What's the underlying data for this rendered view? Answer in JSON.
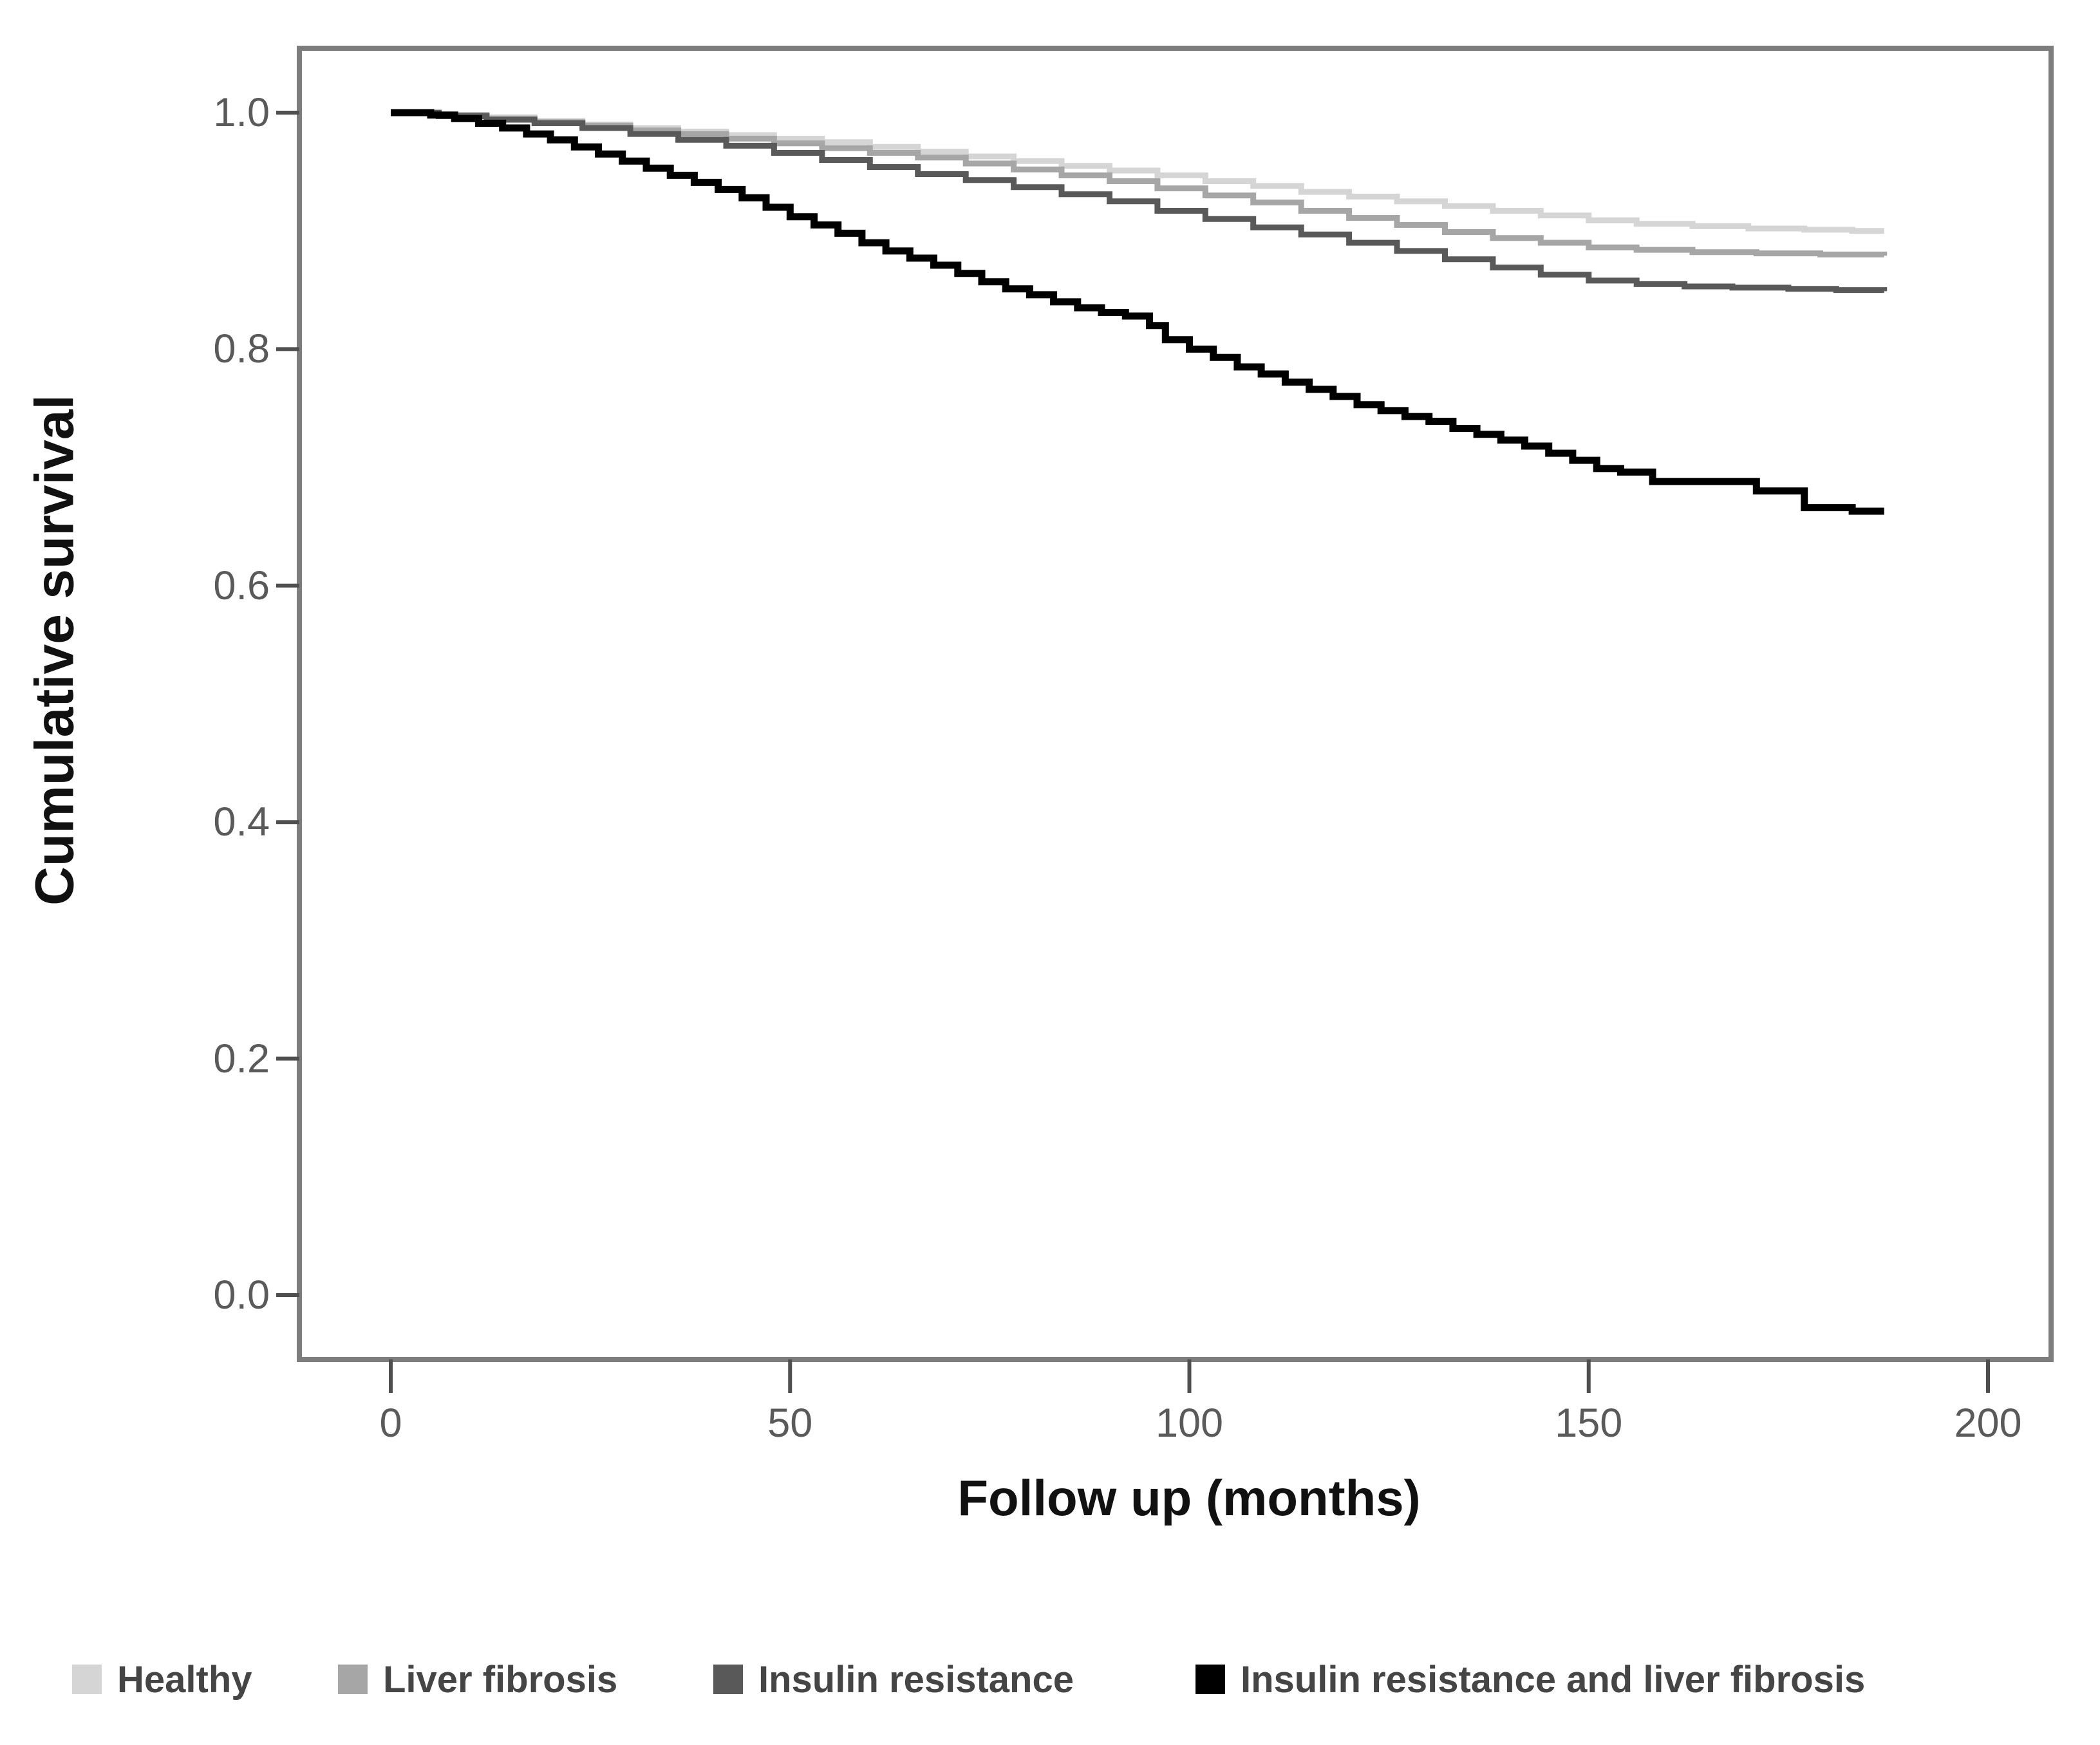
{
  "chart_data": {
    "type": "line",
    "subtype": "kaplan-meier-step-survival",
    "title": "",
    "xlabel": "Follow up (months)",
    "ylabel": "Cumulative survival",
    "xlim": [
      0,
      200
    ],
    "ylim": [
      0.0,
      1.0
    ],
    "x_ticks": [
      0,
      50,
      100,
      150,
      200
    ],
    "y_tick_labels": [
      "1.0",
      "0.8",
      "0.6",
      "0.4",
      "0.2",
      "0.0"
    ],
    "y_tick_values": [
      1.0,
      0.8,
      0.6,
      0.4,
      0.2,
      0.0
    ],
    "grid": false,
    "legend_position": "bottom",
    "frame_color": "#7d7d7d",
    "tick_color": "#4f4f4f",
    "series": [
      {
        "name": "Healthy",
        "color": "#d5d5d5",
        "line_width": 9,
        "points": [
          [
            0,
            1.0
          ],
          [
            6,
            0.998
          ],
          [
            12,
            0.996
          ],
          [
            18,
            0.993
          ],
          [
            24,
            0.99
          ],
          [
            30,
            0.987
          ],
          [
            36,
            0.984
          ],
          [
            42,
            0.981
          ],
          [
            48,
            0.978
          ],
          [
            54,
            0.975
          ],
          [
            60,
            0.971
          ],
          [
            66,
            0.967
          ],
          [
            72,
            0.963
          ],
          [
            78,
            0.959
          ],
          [
            84,
            0.955
          ],
          [
            90,
            0.951
          ],
          [
            96,
            0.947
          ],
          [
            102,
            0.942
          ],
          [
            108,
            0.938
          ],
          [
            114,
            0.933
          ],
          [
            120,
            0.929
          ],
          [
            126,
            0.925
          ],
          [
            132,
            0.921
          ],
          [
            138,
            0.917
          ],
          [
            144,
            0.913
          ],
          [
            150,
            0.909
          ],
          [
            156,
            0.906
          ],
          [
            163,
            0.904
          ],
          [
            170,
            0.902
          ],
          [
            177,
            0.901
          ],
          [
            183,
            0.9
          ],
          [
            187,
            0.9
          ]
        ]
      },
      {
        "name": "Liver fibrosis",
        "color": "#a6a6a6",
        "line_width": 9,
        "points": [
          [
            0,
            1.0
          ],
          [
            6,
            0.998
          ],
          [
            12,
            0.995
          ],
          [
            18,
            0.992
          ],
          [
            24,
            0.989
          ],
          [
            30,
            0.985
          ],
          [
            36,
            0.982
          ],
          [
            42,
            0.978
          ],
          [
            48,
            0.974
          ],
          [
            54,
            0.97
          ],
          [
            60,
            0.966
          ],
          [
            66,
            0.962
          ],
          [
            72,
            0.957
          ],
          [
            78,
            0.952
          ],
          [
            84,
            0.947
          ],
          [
            90,
            0.942
          ],
          [
            96,
            0.936
          ],
          [
            102,
            0.93
          ],
          [
            108,
            0.924
          ],
          [
            114,
            0.917
          ],
          [
            120,
            0.911
          ],
          [
            126,
            0.905
          ],
          [
            132,
            0.899
          ],
          [
            138,
            0.894
          ],
          [
            144,
            0.89
          ],
          [
            150,
            0.886
          ],
          [
            156,
            0.884
          ],
          [
            163,
            0.882
          ],
          [
            171,
            0.881
          ],
          [
            179,
            0.88
          ],
          [
            187,
            0.879
          ]
        ]
      },
      {
        "name": "Insulin resistance",
        "color": "#595959",
        "line_width": 9,
        "points": [
          [
            0,
            1.0
          ],
          [
            6,
            0.997
          ],
          [
            12,
            0.994
          ],
          [
            18,
            0.991
          ],
          [
            24,
            0.987
          ],
          [
            30,
            0.982
          ],
          [
            36,
            0.977
          ],
          [
            42,
            0.972
          ],
          [
            48,
            0.966
          ],
          [
            54,
            0.96
          ],
          [
            60,
            0.954
          ],
          [
            66,
            0.948
          ],
          [
            72,
            0.943
          ],
          [
            78,
            0.937
          ],
          [
            84,
            0.931
          ],
          [
            90,
            0.925
          ],
          [
            96,
            0.917
          ],
          [
            102,
            0.91
          ],
          [
            108,
            0.903
          ],
          [
            114,
            0.897
          ],
          [
            120,
            0.89
          ],
          [
            126,
            0.883
          ],
          [
            132,
            0.876
          ],
          [
            138,
            0.869
          ],
          [
            144,
            0.863
          ],
          [
            150,
            0.858
          ],
          [
            156,
            0.855
          ],
          [
            162,
            0.853
          ],
          [
            168,
            0.852
          ],
          [
            175,
            0.851
          ],
          [
            181,
            0.85
          ],
          [
            187,
            0.849
          ]
        ]
      },
      {
        "name": "Insulin resistance and liver fibrosis",
        "color": "#000000",
        "line_width": 11,
        "points": [
          [
            0,
            1.0
          ],
          [
            5,
            0.998
          ],
          [
            8,
            0.995
          ],
          [
            11,
            0.991
          ],
          [
            14,
            0.987
          ],
          [
            17,
            0.982
          ],
          [
            20,
            0.977
          ],
          [
            23,
            0.971
          ],
          [
            26,
            0.965
          ],
          [
            29,
            0.959
          ],
          [
            32,
            0.953
          ],
          [
            35,
            0.947
          ],
          [
            38,
            0.941
          ],
          [
            41,
            0.935
          ],
          [
            44,
            0.928
          ],
          [
            47,
            0.92
          ],
          [
            50,
            0.912
          ],
          [
            53,
            0.905
          ],
          [
            56,
            0.898
          ],
          [
            59,
            0.89
          ],
          [
            62,
            0.883
          ],
          [
            65,
            0.877
          ],
          [
            68,
            0.871
          ],
          [
            71,
            0.864
          ],
          [
            74,
            0.857
          ],
          [
            77,
            0.851
          ],
          [
            80,
            0.846
          ],
          [
            83,
            0.84
          ],
          [
            86,
            0.835
          ],
          [
            89,
            0.831
          ],
          [
            92,
            0.828
          ],
          [
            95,
            0.82
          ],
          [
            97,
            0.808
          ],
          [
            100,
            0.8
          ],
          [
            103,
            0.793
          ],
          [
            106,
            0.785
          ],
          [
            109,
            0.779
          ],
          [
            112,
            0.772
          ],
          [
            115,
            0.766
          ],
          [
            118,
            0.76
          ],
          [
            121,
            0.753
          ],
          [
            124,
            0.748
          ],
          [
            127,
            0.743
          ],
          [
            130,
            0.739
          ],
          [
            133,
            0.733
          ],
          [
            136,
            0.728
          ],
          [
            139,
            0.723
          ],
          [
            142,
            0.718
          ],
          [
            145,
            0.712
          ],
          [
            148,
            0.706
          ],
          [
            151,
            0.699
          ],
          [
            154,
            0.696
          ],
          [
            158,
            0.688
          ],
          [
            171,
            0.68
          ],
          [
            177,
            0.666
          ],
          [
            183,
            0.663
          ],
          [
            187,
            0.663
          ]
        ]
      }
    ]
  }
}
